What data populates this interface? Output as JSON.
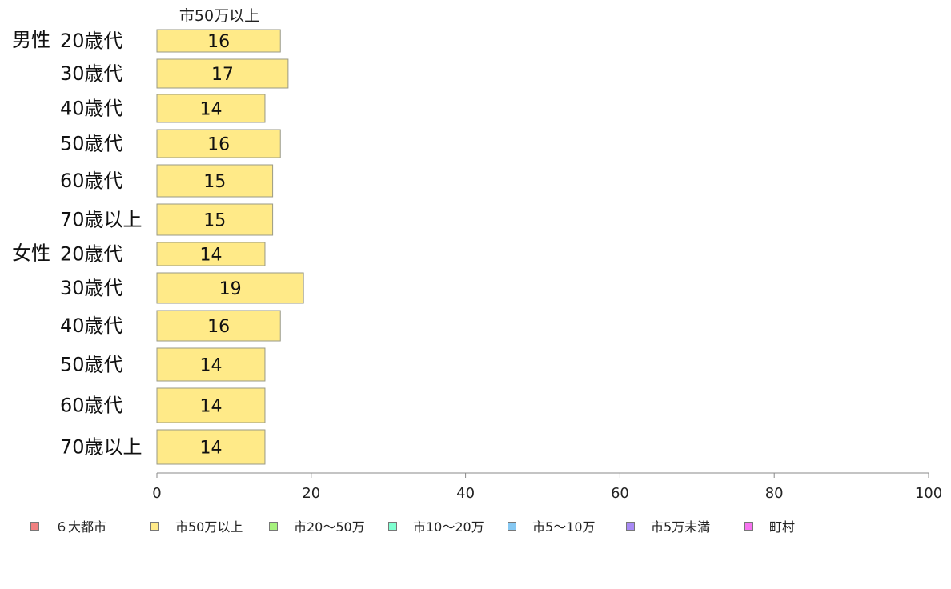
{
  "chart_data": {
    "type": "bar",
    "orientation": "horizontal",
    "series_label": "市50万以上",
    "groups": [
      {
        "label": "男性",
        "categories": [
          "20歳代",
          "30歳代",
          "40歳代",
          "50歳代",
          "60歳代",
          "70歳以上"
        ],
        "values": [
          16,
          17,
          14,
          16,
          15,
          15
        ]
      },
      {
        "label": "女性",
        "categories": [
          "20歳代",
          "30歳代",
          "40歳代",
          "50歳代",
          "60歳代",
          "70歳以上"
        ],
        "values": [
          14,
          19,
          16,
          14,
          14,
          14
        ]
      }
    ],
    "xlim": [
      0,
      100
    ],
    "xticks": [
      "0",
      "20",
      "40",
      "60",
      "80",
      "100"
    ],
    "bar_color": "#FFEA88",
    "grid": false,
    "legend_position": "bottom",
    "legend": [
      {
        "label": "６大都市",
        "color": "#F08080"
      },
      {
        "label": "市50万以上",
        "color": "#FFEA88"
      },
      {
        "label": "市20～50万",
        "color": "#A6F27E"
      },
      {
        "label": "市10～20万",
        "color": "#7FFFD0"
      },
      {
        "label": "市5～10万",
        "color": "#86C8F2"
      },
      {
        "label": "市5万未満",
        "color": "#A88AF5"
      },
      {
        "label": "町村",
        "color": "#F774F0"
      }
    ]
  }
}
